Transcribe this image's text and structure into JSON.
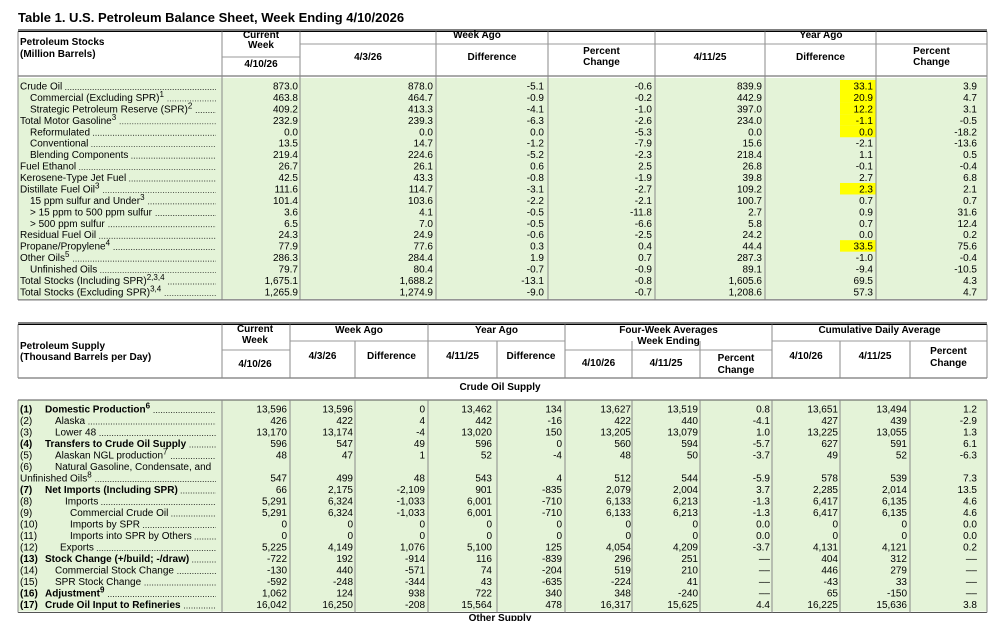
{
  "title": "Table 1.  U.S. Petroleum Balance Sheet, Week Ending 4/10/2026",
  "stocks": {
    "heading": "Petroleum Stocks",
    "units": "(Million Barrels)",
    "current_week": [
      "Current",
      "Week"
    ],
    "current_date": "4/10/26",
    "week_ago": "Week Ago",
    "year_ago": "Year Ago",
    "columns": [
      [
        "4/3/26"
      ],
      [
        "Difference"
      ],
      [
        "Percent",
        "Change"
      ],
      [
        "4/11/25"
      ],
      [
        "Difference"
      ],
      [
        "Percent",
        "Change"
      ]
    ],
    "rows": [
      {
        "label": "Crude Oil",
        "values": [
          "873.0",
          "878.0",
          "-5.1",
          "-0.6",
          "839.9",
          "33.1",
          "3.9"
        ]
      },
      {
        "label": "Commercial (Excluding SPR)",
        "note": "1",
        "values": [
          "463.8",
          "464.7",
          "-0.9",
          "-0.2",
          "442.9",
          "20.9",
          "4.7"
        ]
      },
      {
        "label": "Strategic Petroleum Reserve (SPR)",
        "note": "2",
        "values": [
          "409.2",
          "413.3",
          "-4.1",
          "-1.0",
          "397.0",
          "12.2",
          "3.1"
        ]
      },
      {
        "label": "Total Motor Gasoline",
        "note": "3",
        "values": [
          "232.9",
          "239.3",
          "-6.3",
          "-2.6",
          "234.0",
          "-1.1",
          "-0.5"
        ]
      },
      {
        "label": "Reformulated",
        "values": [
          "0.0",
          "0.0",
          "0.0",
          "-5.3",
          "0.0",
          "0.0",
          "-18.2"
        ]
      },
      {
        "label": "Conventional",
        "values": [
          "13.5",
          "14.7",
          "-1.2",
          "-7.9",
          "15.6",
          "-2.1",
          "-13.6"
        ]
      },
      {
        "label": "Blending Components",
        "values": [
          "219.4",
          "224.6",
          "-5.2",
          "-2.3",
          "218.4",
          "1.1",
          "0.5"
        ]
      },
      {
        "label": "Fuel Ethanol",
        "values": [
          "26.7",
          "26.1",
          "0.6",
          "2.5",
          "26.8",
          "-0.1",
          "-0.4"
        ]
      },
      {
        "label": "Kerosene-Type Jet Fuel",
        "values": [
          "42.5",
          "43.3",
          "-0.8",
          "-1.9",
          "39.8",
          "2.7",
          "6.8"
        ]
      },
      {
        "label": "Distillate Fuel Oil",
        "note": "3",
        "values": [
          "111.6",
          "114.7",
          "-3.1",
          "-2.7",
          "109.2",
          "2.3",
          "2.1"
        ]
      },
      {
        "label": "15 ppm sulfur and Under",
        "note": "3",
        "values": [
          "101.4",
          "103.6",
          "-2.2",
          "-2.1",
          "100.7",
          "0.7",
          "0.7"
        ]
      },
      {
        "label": "> 15 ppm to 500 ppm sulfur",
        "values": [
          "3.6",
          "4.1",
          "-0.5",
          "-11.8",
          "2.7",
          "0.9",
          "31.6"
        ]
      },
      {
        "label": "> 500 ppm sulfur",
        "values": [
          "6.5",
          "7.0",
          "-0.5",
          "-6.6",
          "5.8",
          "0.7",
          "12.4"
        ]
      },
      {
        "label": "Residual Fuel Oil",
        "values": [
          "24.3",
          "24.9",
          "-0.6",
          "-2.5",
          "24.2",
          "0.0",
          "0.2"
        ]
      },
      {
        "label": "Propane/Propylene",
        "note": "4",
        "values": [
          "77.9",
          "77.6",
          "0.3",
          "0.4",
          "44.4",
          "33.5",
          "75.6"
        ]
      },
      {
        "label": "Other Oils",
        "note": "5",
        "values": [
          "286.3",
          "284.4",
          "1.9",
          "0.7",
          "287.3",
          "-1.0",
          "-0.4"
        ]
      },
      {
        "label": "Unfinished Oils",
        "values": [
          "79.7",
          "80.4",
          "-0.7",
          "-0.9",
          "89.1",
          "-9.4",
          "-10.5"
        ]
      },
      {
        "label": "Total Stocks (Including SPR)",
        "note": "2,3,4",
        "values": [
          "1,675.1",
          "1,688.2",
          "-13.1",
          "-0.8",
          "1,605.6",
          "69.5",
          "4.3"
        ]
      },
      {
        "label": "Total Stocks (Excluding SPR)",
        "note": "3,4",
        "values": [
          "1,265.9",
          "1,274.9",
          "-9.0",
          "-0.7",
          "1,208.6",
          "57.3",
          "4.7"
        ]
      }
    ]
  },
  "supply": {
    "heading": [
      "Petroleum Supply",
      "(Thousand Barrels per Day)"
    ],
    "current_week": [
      "Current",
      "Week"
    ],
    "current_date": "4/10/26",
    "groups": [
      [
        "Week Ago"
      ],
      [
        "Year Ago"
      ],
      [
        "Four-Week Averages",
        "Week Ending"
      ],
      [
        "Cumulative Daily Average"
      ]
    ],
    "columns": [
      [
        "4/3/26"
      ],
      [
        "Difference"
      ],
      [
        "4/11/25"
      ],
      [
        "Difference"
      ],
      [
        "4/10/26"
      ],
      [
        "4/11/25"
      ],
      [
        "Percent",
        "Change"
      ],
      [
        "4/10/26"
      ],
      [
        "4/11/25"
      ],
      [
        "Percent",
        "Change"
      ]
    ],
    "section": "Crude Oil Supply",
    "next_section": "Other Supply",
    "rows": [
      {
        "num": "(1)",
        "label": [
          "Domestic Production"
        ],
        "note": "6",
        "values": [
          "13,596",
          "13,596",
          "0",
          "13,462",
          "134",
          "13,627",
          "13,519",
          "0.8",
          "13,651",
          "13,494",
          "1.2"
        ]
      },
      {
        "num": "(2)",
        "label": [
          "Alaska"
        ],
        "values": [
          "426",
          "422",
          "4",
          "442",
          "-16",
          "422",
          "440",
          "-4.1",
          "427",
          "439",
          "-2.9"
        ]
      },
      {
        "num": "(3)",
        "label": [
          "Lower 48"
        ],
        "values": [
          "13,170",
          "13,174",
          "-4",
          "13,020",
          "150",
          "13,205",
          "13,079",
          "1.0",
          "13,225",
          "13,055",
          "1.3"
        ]
      },
      {
        "num": "(4)",
        "label": [
          "Transfers to Crude Oil Supply"
        ],
        "values": [
          "596",
          "547",
          "49",
          "596",
          "0",
          "560",
          "594",
          "-5.7",
          "627",
          "591",
          "6.1"
        ]
      },
      {
        "num": "(5)",
        "label": [
          "Alaskan NGL production"
        ],
        "note": "7",
        "values": [
          "48",
          "47",
          "1",
          "52",
          "-4",
          "48",
          "50",
          "-3.7",
          "49",
          "52",
          "-6.3"
        ]
      },
      {
        "num": "(6)",
        "label": [
          "Natural Gasoline, Condensate, and",
          "Unfinished Oils"
        ],
        "note": "8",
        "values": [
          "547",
          "499",
          "48",
          "543",
          "4",
          "512",
          "544",
          "-5.9",
          "578",
          "539",
          "7.3"
        ]
      },
      {
        "num": "(7)",
        "label": [
          "Net Imports (Including SPR)"
        ],
        "values": [
          "66",
          "2,175",
          "-2,109",
          "901",
          "-835",
          "2,079",
          "2,004",
          "3.7",
          "2,285",
          "2,014",
          "13.5"
        ]
      },
      {
        "num": "(8)",
        "label": [
          "Imports"
        ],
        "values": [
          "5,291",
          "6,324",
          "-1,033",
          "6,001",
          "-710",
          "6,133",
          "6,213",
          "-1.3",
          "6,417",
          "6,135",
          "4.6"
        ]
      },
      {
        "num": "(9)",
        "label": [
          "Commercial Crude Oil"
        ],
        "values": [
          "5,291",
          "6,324",
          "-1,033",
          "6,001",
          "-710",
          "6,133",
          "6,213",
          "-1.3",
          "6,417",
          "6,135",
          "4.6"
        ]
      },
      {
        "num": "(10)",
        "label": [
          "Imports by SPR"
        ],
        "values": [
          "0",
          "0",
          "0",
          "0",
          "0",
          "0",
          "0",
          "0.0",
          "0",
          "0",
          "0.0"
        ]
      },
      {
        "num": "(11)",
        "label": [
          "Imports into SPR by Others"
        ],
        "values": [
          "0",
          "0",
          "0",
          "0",
          "0",
          "0",
          "0",
          "0.0",
          "0",
          "0",
          "0.0"
        ]
      },
      {
        "num": "(12)",
        "label": [
          "Exports"
        ],
        "values": [
          "5,225",
          "4,149",
          "1,076",
          "5,100",
          "125",
          "4,054",
          "4,209",
          "-3.7",
          "4,131",
          "4,121",
          "0.2"
        ]
      },
      {
        "num": "(13)",
        "label": [
          "Stock Change (+/build; -/draw)"
        ],
        "values": [
          "-722",
          "192",
          "-914",
          "116",
          "-839",
          "296",
          "251",
          "––",
          "404",
          "312",
          "––"
        ]
      },
      {
        "num": "(14)",
        "label": [
          "Commercial Stock Change"
        ],
        "values": [
          "-130",
          "440",
          "-571",
          "74",
          "-204",
          "519",
          "210",
          "––",
          "446",
          "279",
          "––"
        ]
      },
      {
        "num": "(15)",
        "label": [
          "SPR Stock Change"
        ],
        "values": [
          "-592",
          "-248",
          "-344",
          "43",
          "-635",
          "-224",
          "41",
          "––",
          "-43",
          "33",
          "––"
        ]
      },
      {
        "num": "(16)",
        "label": [
          "Adjustment"
        ],
        "note": "9",
        "values": [
          "1,062",
          "124",
          "938",
          "722",
          "340",
          "348",
          "-240",
          "––",
          "65",
          "-150",
          "––"
        ]
      },
      {
        "num": "(17)",
        "label": [
          "Crude Oil Input to Refineries"
        ],
        "values": [
          "16,042",
          "16,250",
          "-208",
          "15,564",
          "478",
          "16,317",
          "15,625",
          "4.4",
          "16,225",
          "15,636",
          "3.8"
        ]
      }
    ]
  }
}
